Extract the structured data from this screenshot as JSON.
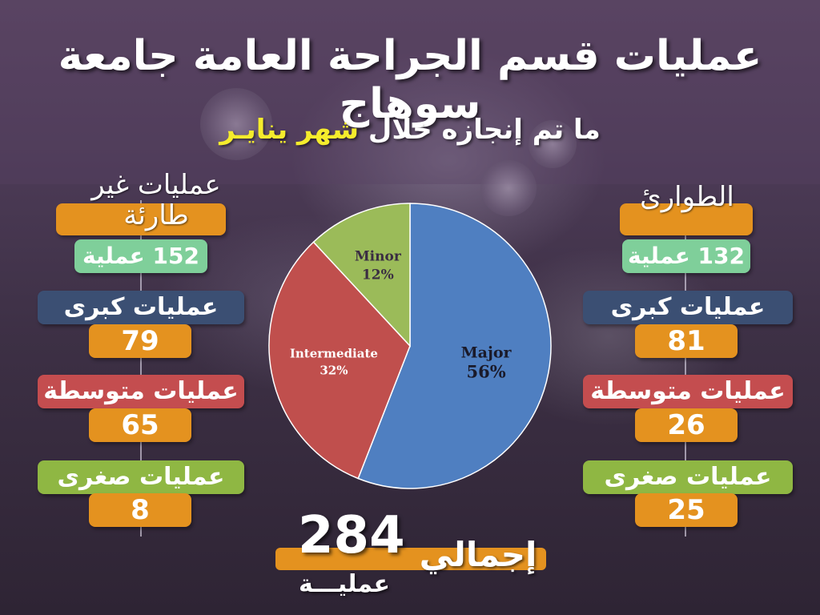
{
  "title": "عمليات قسم الجراحة العامة جامعة سوهاج",
  "subtitle": {
    "prefix": "ما تم إنجازه خلال ",
    "highlight": "شهر ينايـر"
  },
  "colors": {
    "background": "#3a2d42",
    "orange": "#e4921f",
    "green": "#7fcf9a",
    "navy": "#3b4f73",
    "red": "#c44d4f",
    "olive": "#8fb743",
    "highlight": "#f5ec2c"
  },
  "elective": {
    "heading": "عمليات غير طارئة",
    "total": "152 عملية",
    "major_label": "عمليات كبرى",
    "major_value": "79",
    "intermediate_label": "عمليات متوسطة",
    "intermediate_value": "65",
    "minor_label": "عمليات صغرى",
    "minor_value": "8"
  },
  "emergency": {
    "heading": "الطوارئ",
    "total": "132 عملية",
    "major_label": "عمليات كبرى",
    "major_value": "81",
    "intermediate_label": "عمليات متوسطة",
    "intermediate_value": "26",
    "minor_label": "عمليات صغرى",
    "minor_value": "25"
  },
  "grand_total": {
    "label": "إجمالي",
    "value": "284",
    "unit": "عمليـــة"
  },
  "chart_data": {
    "type": "pie",
    "categories": [
      "Major",
      "Intermediate",
      "Minor"
    ],
    "values": [
      56,
      32,
      12
    ],
    "labels": [
      "56%",
      "32%",
      "12%"
    ],
    "colors": [
      "#4f7fc1",
      "#c04f4d",
      "#9bbb59"
    ]
  }
}
